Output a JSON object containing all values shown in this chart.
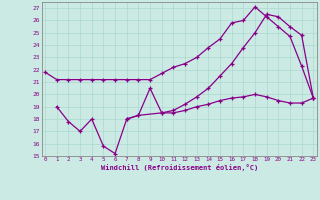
{
  "bg_color": "#cceae4",
  "line_color": "#880088",
  "marker": "+",
  "xlabel": "Windchill (Refroidissement éolien,°C)",
  "ylabel_ticks": [
    15,
    16,
    17,
    18,
    19,
    20,
    21,
    22,
    23,
    24,
    25,
    26,
    27
  ],
  "xticks": [
    0,
    1,
    2,
    3,
    4,
    5,
    6,
    7,
    8,
    9,
    10,
    11,
    12,
    13,
    14,
    15,
    16,
    17,
    18,
    19,
    20,
    21,
    22,
    23
  ],
  "xlim": [
    -0.3,
    23.3
  ],
  "ylim": [
    15,
    27.5
  ],
  "series": [
    {
      "x": [
        0,
        1,
        2,
        3,
        4,
        5,
        6,
        7,
        8,
        9,
        10,
        11,
        12,
        13,
        14,
        15,
        16,
        17,
        18,
        19,
        20,
        21,
        22,
        23
      ],
      "y": [
        21.8,
        21.2,
        21.2,
        21.2,
        21.2,
        21.2,
        21.2,
        21.2,
        21.2,
        21.2,
        21.7,
        22.2,
        22.5,
        23.0,
        23.8,
        24.5,
        25.8,
        26.0,
        27.1,
        26.3,
        25.5,
        24.7,
        22.3,
        19.7
      ]
    },
    {
      "x": [
        1,
        2,
        3,
        4,
        5,
        6,
        7,
        8,
        9,
        10,
        11,
        12,
        13,
        14,
        15,
        16,
        17,
        18,
        19,
        20,
        21,
        22,
        23
      ],
      "y": [
        19.0,
        17.8,
        17.0,
        18.0,
        15.8,
        15.2,
        18.0,
        18.3,
        20.5,
        18.5,
        18.5,
        18.7,
        19.0,
        19.2,
        19.5,
        19.7,
        19.8,
        20.0,
        19.8,
        19.5,
        19.3,
        19.3,
        19.7
      ]
    },
    {
      "x": [
        7,
        8,
        10,
        11,
        12,
        13,
        14,
        15,
        16,
        17,
        18,
        19,
        20,
        21,
        22,
        23
      ],
      "y": [
        18.0,
        18.3,
        18.5,
        18.7,
        19.2,
        19.8,
        20.5,
        21.5,
        22.5,
        23.8,
        25.0,
        26.5,
        26.3,
        25.5,
        24.8,
        19.7
      ]
    }
  ]
}
